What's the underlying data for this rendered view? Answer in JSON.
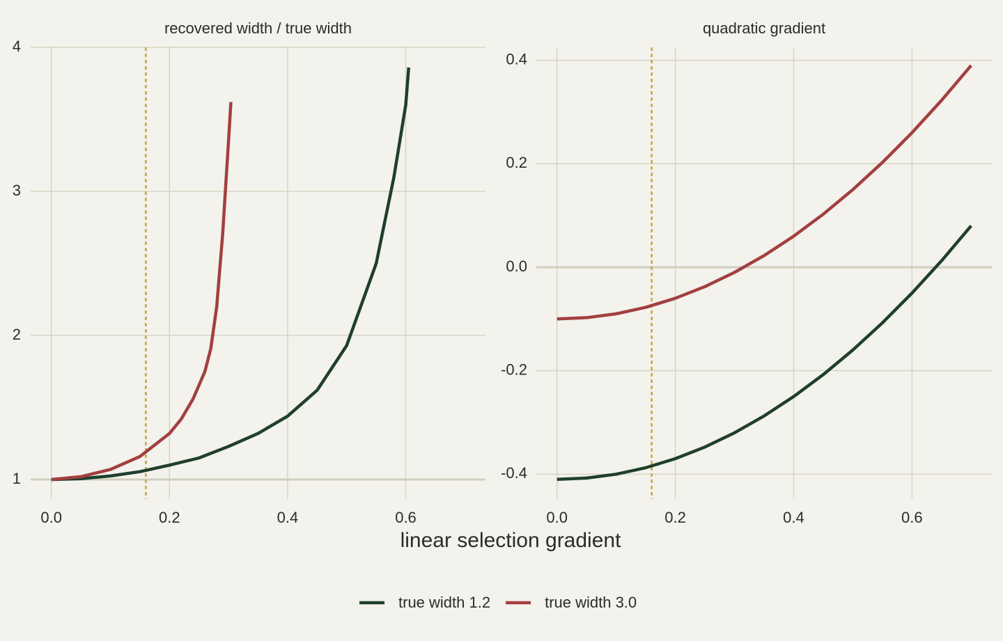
{
  "xlabel": "linear selection gradient",
  "legend_position": "bottom",
  "chart_data": [
    {
      "type": "line",
      "title": "recovered width / true width",
      "xlim": [
        -0.035,
        0.735
      ],
      "ylim": [
        0.865,
        4.0
      ],
      "xticks": [
        {
          "value": 0,
          "label": "0.0"
        },
        0.2,
        0.4,
        0.6
      ],
      "yticks": [
        1,
        2,
        3,
        4
      ],
      "grid": true,
      "hline": 1,
      "vline": 0.16,
      "vline_color": "#c9a53a",
      "series": [
        {
          "name": "true width 1.2",
          "color": "#1f3f2c",
          "x": [
            0,
            0.05,
            0.1,
            0.15,
            0.2,
            0.25,
            0.3,
            0.35,
            0.4,
            0.45,
            0.5,
            0.55,
            0.58,
            0.6,
            0.605
          ],
          "values": [
            1.0,
            1.006,
            1.025,
            1.055,
            1.1,
            1.15,
            1.23,
            1.32,
            1.44,
            1.62,
            1.93,
            2.5,
            3.1,
            3.6,
            3.86
          ]
        },
        {
          "name": "true width 3.0",
          "color": "#a33f40",
          "x": [
            0,
            0.05,
            0.1,
            0.15,
            0.2,
            0.22,
            0.24,
            0.26,
            0.27,
            0.28,
            0.29,
            0.3,
            0.304
          ],
          "values": [
            1.0,
            1.02,
            1.07,
            1.16,
            1.32,
            1.42,
            1.56,
            1.75,
            1.91,
            2.2,
            2.7,
            3.35,
            3.62
          ]
        }
      ]
    },
    {
      "type": "line",
      "title": "quadratic gradient",
      "xlim": [
        -0.035,
        0.735
      ],
      "ylim": [
        -0.448,
        0.425
      ],
      "xticks": [
        {
          "value": 0,
          "label": "0.0"
        },
        0.2,
        0.4,
        0.6
      ],
      "yticks": [
        0.4,
        0.2,
        {
          "value": 0,
          "label": "0.0"
        },
        -0.2,
        -0.4
      ],
      "grid": true,
      "hline": 0,
      "vline": 0.16,
      "vline_color": "#c9a53a",
      "series": [
        {
          "color": "#1f3f2c",
          "x": [
            0,
            0.05,
            0.1,
            0.15,
            0.2,
            0.25,
            0.3,
            0.35,
            0.4,
            0.45,
            0.5,
            0.55,
            0.6,
            0.65,
            0.7
          ],
          "values": [
            -0.41,
            -0.4075,
            -0.4,
            -0.3875,
            -0.37,
            -0.3475,
            -0.32,
            -0.2875,
            -0.25,
            -0.2075,
            -0.16,
            -0.1075,
            -0.05,
            0.0125,
            0.08
          ]
        },
        {
          "color": "#a33f40",
          "x": [
            0,
            0.05,
            0.1,
            0.15,
            0.2,
            0.25,
            0.3,
            0.35,
            0.4,
            0.45,
            0.5,
            0.55,
            0.6,
            0.65,
            0.7
          ],
          "values": [
            -0.1,
            -0.0975,
            -0.09,
            -0.0775,
            -0.06,
            -0.0375,
            -0.01,
            0.0225,
            0.06,
            0.1025,
            0.15,
            0.2025,
            0.26,
            0.3225,
            0.39
          ]
        }
      ]
    }
  ]
}
